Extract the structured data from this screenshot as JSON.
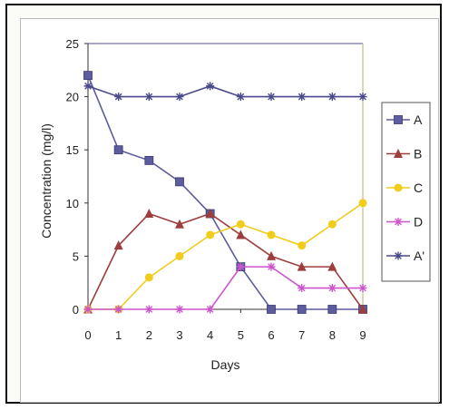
{
  "chart_data": {
    "type": "line",
    "x": [
      0,
      1,
      2,
      3,
      4,
      5,
      6,
      7,
      8,
      9
    ],
    "xlabel": "Days",
    "ylabel": "Concentration (mg/l)",
    "ylim": [
      0,
      25
    ],
    "yticks": [
      0,
      5,
      10,
      15,
      20,
      25
    ],
    "grid": false,
    "legend_position": "right",
    "series": [
      {
        "name": "A",
        "color": "#5c5c9e",
        "marker": "square",
        "values": [
          22,
          15,
          14,
          12,
          9,
          4,
          0,
          0,
          0,
          0
        ]
      },
      {
        "name": "B",
        "color": "#9e3d3d",
        "marker": "triangle",
        "values": [
          0,
          6,
          9,
          8,
          9,
          7,
          5,
          4,
          4,
          0
        ]
      },
      {
        "name": "C",
        "color": "#f2cc1a",
        "marker": "circle",
        "values": [
          0,
          0,
          3,
          5,
          7,
          8,
          7,
          6,
          8,
          10
        ]
      },
      {
        "name": "D",
        "color": "#cc55cc",
        "marker": "asterisk",
        "values": [
          0,
          0,
          0,
          0,
          0,
          4,
          4,
          2,
          2,
          2
        ]
      },
      {
        "name": "A'",
        "color": "#4a4a8a",
        "marker": "asterisk",
        "values": [
          21,
          20,
          20,
          20,
          21,
          20,
          20,
          20,
          20,
          20
        ]
      }
    ]
  }
}
